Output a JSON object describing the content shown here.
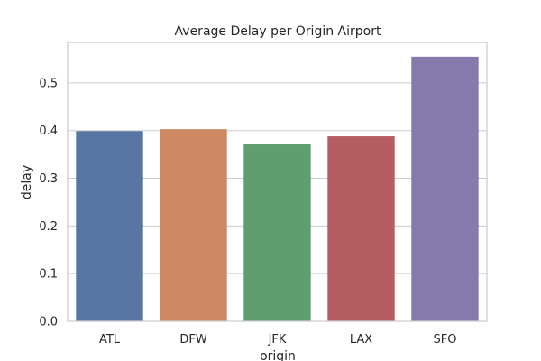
{
  "chart_data": {
    "type": "bar",
    "title": "Average Delay per Origin Airport",
    "xlabel": "origin",
    "ylabel": "delay",
    "categories": [
      "ATL",
      "DFW",
      "JFK",
      "LAX",
      "SFO"
    ],
    "values": [
      0.399,
      0.403,
      0.371,
      0.388,
      0.555
    ],
    "colors": [
      "#5875a4",
      "#cc8963",
      "#5f9e6e",
      "#b55d60",
      "#857aab"
    ],
    "ylim": [
      0,
      0.585
    ],
    "yticks": [
      0.0,
      0.1,
      0.2,
      0.3,
      0.4,
      0.5
    ],
    "ytick_labels": [
      "0.0",
      "0.1",
      "0.2",
      "0.3",
      "0.4",
      "0.5"
    ],
    "grid": "horizontal",
    "legend": "none"
  }
}
